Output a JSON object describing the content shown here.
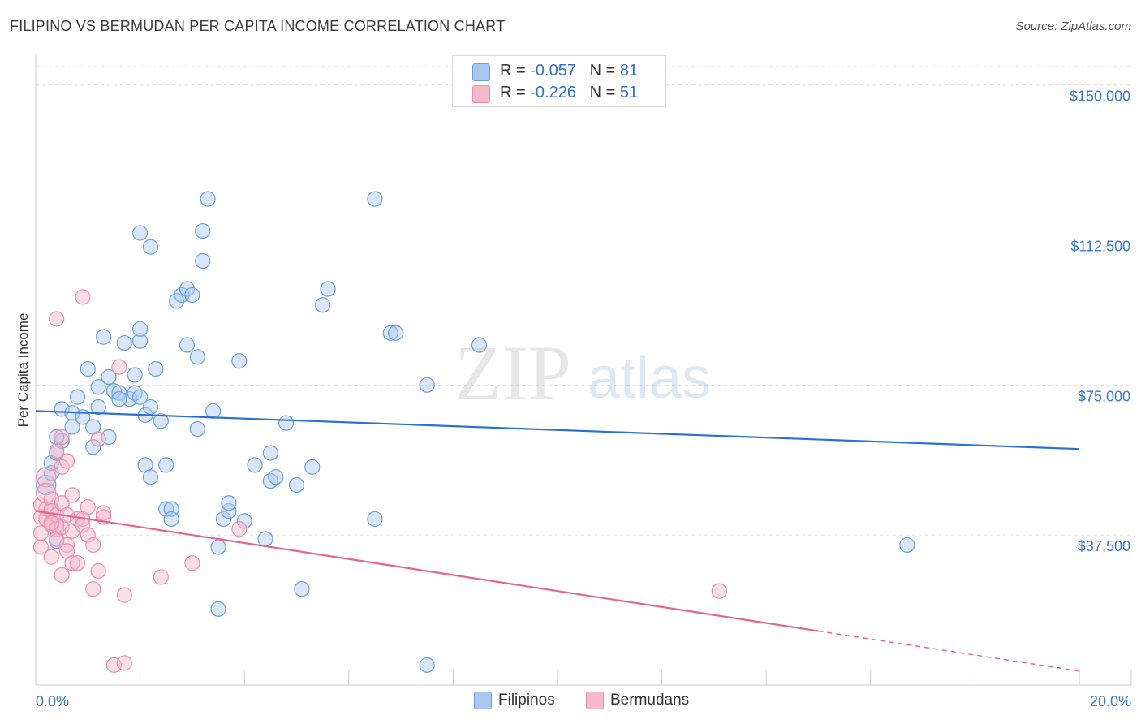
{
  "title": "FILIPINO VS BERMUDAN PER CAPITA INCOME CORRELATION CHART",
  "source": "Source: ZipAtlas.com",
  "watermark": {
    "zip": "ZIP",
    "atlas": "atlas"
  },
  "legend": {
    "filipino": {
      "r_label": "R =",
      "r_value": "-0.057",
      "n_label": "N =",
      "n_value": "81"
    },
    "bermudan": {
      "r_label": "R =",
      "r_value": "-0.226",
      "n_label": "N =",
      "n_value": "51"
    }
  },
  "bottom_legend": {
    "filipino": "Filipinos",
    "bermudan": "Bermudans"
  },
  "colors": {
    "filipino_fill": "#a8c8f0",
    "filipino_stroke": "#6a9ee0",
    "filipino_line": "#2872d2",
    "bermudan_fill": "#f7b8cb",
    "bermudan_stroke": "#ea8fae",
    "bermudan_line": "#e8628f",
    "axis_value": "#3a78d0",
    "grid": "#dddddd"
  },
  "chart_data": {
    "type": "scatter",
    "title": "FILIPINO VS BERMUDAN PER CAPITA INCOME CORRELATION CHART",
    "xlabel": "",
    "ylabel": "Per Capita Income",
    "xlim": [
      0,
      20
    ],
    "ylim": [
      0,
      155000
    ],
    "x_tick_labels": [
      "0.0%",
      "20.0%"
    ],
    "y_ticks": [
      37500,
      75000,
      112500,
      150000
    ],
    "y_tick_labels": [
      "$37,500",
      "$75,000",
      "$112,500",
      "$150,000"
    ],
    "series": [
      {
        "name": "Filipinos",
        "r": -0.057,
        "n": 81,
        "trend": {
          "x": [
            0,
            20
          ],
          "y": [
            68500,
            59000
          ]
        },
        "points": [
          [
            0.2,
            50000
          ],
          [
            0.3,
            44000
          ],
          [
            0.3,
            53000
          ],
          [
            0.3,
            55500
          ],
          [
            0.4,
            58000
          ],
          [
            0.4,
            36000
          ],
          [
            0.4,
            40000
          ],
          [
            0.5,
            69000
          ],
          [
            0.5,
            61000
          ],
          [
            0.7,
            68000
          ],
          [
            0.7,
            64500
          ],
          [
            0.8,
            72000
          ],
          [
            0.9,
            67000
          ],
          [
            1.0,
            79000
          ],
          [
            1.1,
            59500
          ],
          [
            1.1,
            64500
          ],
          [
            1.2,
            74500
          ],
          [
            1.2,
            69500
          ],
          [
            1.3,
            87000
          ],
          [
            1.4,
            62000
          ],
          [
            1.4,
            77000
          ],
          [
            1.5,
            73500
          ],
          [
            1.6,
            73000
          ],
          [
            1.7,
            85500
          ],
          [
            1.8,
            71500
          ],
          [
            1.9,
            77500
          ],
          [
            1.9,
            73000
          ],
          [
            2.0,
            72000
          ],
          [
            2.1,
            67500
          ],
          [
            2.2,
            69500
          ],
          [
            2.0,
            86000
          ],
          [
            2.0,
            89000
          ],
          [
            2.0,
            113000
          ],
          [
            2.1,
            55000
          ],
          [
            2.2,
            52000
          ],
          [
            2.2,
            109500
          ],
          [
            2.3,
            79000
          ],
          [
            2.4,
            66000
          ],
          [
            2.5,
            44000
          ],
          [
            2.5,
            55000
          ],
          [
            2.6,
            44000
          ],
          [
            2.6,
            41500
          ],
          [
            2.7,
            96000
          ],
          [
            2.8,
            97500
          ],
          [
            2.9,
            99000
          ],
          [
            2.9,
            85000
          ],
          [
            3.0,
            97500
          ],
          [
            3.1,
            82000
          ],
          [
            3.1,
            64000
          ],
          [
            3.2,
            113500
          ],
          [
            3.2,
            106000
          ],
          [
            3.3,
            121500
          ],
          [
            3.4,
            68500
          ],
          [
            3.5,
            34500
          ],
          [
            3.5,
            19000
          ],
          [
            3.6,
            41500
          ],
          [
            3.7,
            43500
          ],
          [
            3.7,
            45500
          ],
          [
            3.9,
            81000
          ],
          [
            4.0,
            41000
          ],
          [
            4.2,
            55000
          ],
          [
            4.4,
            36500
          ],
          [
            4.5,
            58000
          ],
          [
            4.5,
            51000
          ],
          [
            4.6,
            52000
          ],
          [
            4.8,
            65500
          ],
          [
            5.0,
            50000
          ],
          [
            5.1,
            24000
          ],
          [
            5.3,
            54500
          ],
          [
            5.5,
            95000
          ],
          [
            5.6,
            99000
          ],
          [
            6.5,
            121500
          ],
          [
            6.5,
            41500
          ],
          [
            6.8,
            88000
          ],
          [
            6.9,
            88000
          ],
          [
            7.5,
            75000
          ],
          [
            7.5,
            5000
          ],
          [
            8.5,
            85000
          ],
          [
            16.7,
            35000
          ],
          [
            0.4,
            62000
          ],
          [
            1.6,
            71500
          ]
        ]
      },
      {
        "name": "Bermudans",
        "r": -0.226,
        "n": 51,
        "trend": {
          "x": [
            0,
            15
          ],
          "y": [
            43500,
            13500
          ]
        },
        "trend_dashed": {
          "x": [
            15,
            20
          ],
          "y": [
            13500,
            3500
          ]
        },
        "points": [
          [
            0.1,
            45000
          ],
          [
            0.1,
            42000
          ],
          [
            0.1,
            38000
          ],
          [
            0.1,
            34500
          ],
          [
            0.2,
            52000
          ],
          [
            0.2,
            48000
          ],
          [
            0.2,
            44000
          ],
          [
            0.2,
            41500
          ],
          [
            0.3,
            46500
          ],
          [
            0.3,
            43500
          ],
          [
            0.3,
            40000
          ],
          [
            0.3,
            32000
          ],
          [
            0.4,
            42500
          ],
          [
            0.4,
            39000
          ],
          [
            0.4,
            36500
          ],
          [
            0.4,
            58500
          ],
          [
            0.4,
            91500
          ],
          [
            0.5,
            62000
          ],
          [
            0.5,
            54500
          ],
          [
            0.5,
            45500
          ],
          [
            0.5,
            39500
          ],
          [
            0.5,
            27500
          ],
          [
            0.6,
            35000
          ],
          [
            0.6,
            33500
          ],
          [
            0.6,
            56000
          ],
          [
            0.7,
            47500
          ],
          [
            0.7,
            38500
          ],
          [
            0.7,
            30500
          ],
          [
            0.8,
            41500
          ],
          [
            0.8,
            30500
          ],
          [
            0.9,
            97000
          ],
          [
            0.9,
            41500
          ],
          [
            0.9,
            40000
          ],
          [
            1.0,
            44500
          ],
          [
            1.0,
            37500
          ],
          [
            1.1,
            35000
          ],
          [
            1.1,
            24000
          ],
          [
            1.2,
            61500
          ],
          [
            1.2,
            28500
          ],
          [
            1.3,
            43000
          ],
          [
            1.3,
            42000
          ],
          [
            1.5,
            5000
          ],
          [
            1.6,
            79500
          ],
          [
            1.7,
            5500
          ],
          [
            1.7,
            22500
          ],
          [
            2.4,
            27000
          ],
          [
            3.0,
            30500
          ],
          [
            3.9,
            39000
          ],
          [
            13.1,
            23500
          ],
          [
            0.3,
            40500
          ],
          [
            0.6,
            42500
          ]
        ]
      }
    ]
  }
}
